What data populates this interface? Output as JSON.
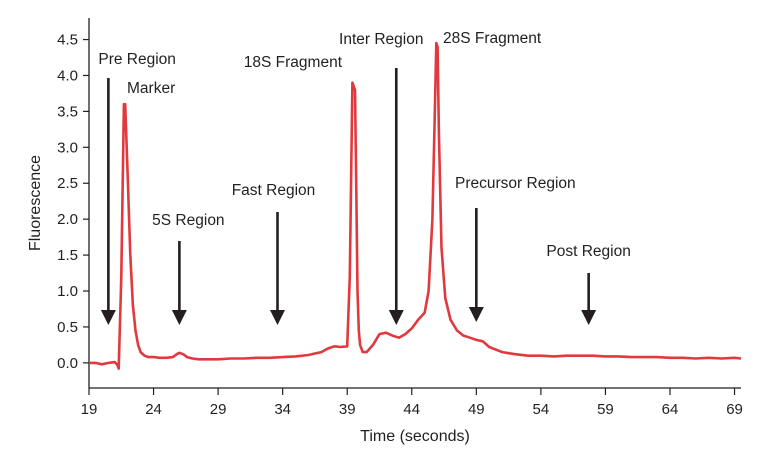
{
  "chart_data": {
    "type": "line",
    "title": "",
    "xlabel": "Time (seconds)",
    "ylabel": "Fluorescence",
    "xlim": [
      19,
      69.5
    ],
    "ylim": [
      -0.35,
      4.8
    ],
    "x_ticks": [
      19,
      24,
      29,
      34,
      39,
      44,
      49,
      54,
      59,
      64,
      69
    ],
    "y_ticks": [
      0.0,
      0.5,
      1.0,
      1.5,
      2.0,
      2.5,
      3.0,
      3.5,
      4.0,
      4.5
    ],
    "y_tick_labels": [
      "0.0",
      "0.5",
      "1.0",
      "1.5",
      "2.0",
      "2.5",
      "3.0",
      "3.5",
      "4.0",
      "4.5"
    ],
    "grid": false,
    "line_color": "#e03a3e",
    "series": [
      {
        "x": [
          19.0,
          19.5,
          20.0,
          20.5,
          21.0,
          21.2,
          21.3,
          21.5,
          21.7,
          21.8,
          22.0,
          22.2,
          22.4,
          22.6,
          22.8,
          23.0,
          23.3,
          23.6,
          24.0,
          24.5,
          25.0,
          25.5,
          25.8,
          26.0,
          26.3,
          26.6,
          27.0,
          27.5,
          28.0,
          29.0,
          30.0,
          31.0,
          32.0,
          33.0,
          34.0,
          35.0,
          36.0,
          36.5,
          37.0,
          37.5,
          38.0,
          38.5,
          39.0,
          39.2,
          39.4,
          39.6,
          39.7,
          39.8,
          39.9,
          40.0,
          40.2,
          40.5,
          41.0,
          41.5,
          42.0,
          42.5,
          43.0,
          43.5,
          44.0,
          44.5,
          45.0,
          45.3,
          45.6,
          45.8,
          45.9,
          46.0,
          46.1,
          46.3,
          46.6,
          47.0,
          47.5,
          48.0,
          48.5,
          49.0,
          49.5,
          50.0,
          51.0,
          52.0,
          53.0,
          54.0,
          55.0,
          56.0,
          57.0,
          58.0,
          59.0,
          60.0,
          61.0,
          62.0,
          63.0,
          64.0,
          65.0,
          66.0,
          67.0,
          68.0,
          69.0,
          69.5
        ],
        "y": [
          0.0,
          0.0,
          -0.02,
          0.0,
          0.01,
          -0.03,
          -0.08,
          1.2,
          3.6,
          3.6,
          2.6,
          1.5,
          0.8,
          0.45,
          0.25,
          0.15,
          0.1,
          0.08,
          0.08,
          0.07,
          0.07,
          0.08,
          0.12,
          0.14,
          0.12,
          0.08,
          0.06,
          0.05,
          0.05,
          0.05,
          0.06,
          0.06,
          0.07,
          0.07,
          0.08,
          0.09,
          0.11,
          0.13,
          0.15,
          0.2,
          0.23,
          0.22,
          0.23,
          1.2,
          3.9,
          3.8,
          2.4,
          1.0,
          0.45,
          0.25,
          0.15,
          0.15,
          0.25,
          0.4,
          0.42,
          0.38,
          0.35,
          0.4,
          0.48,
          0.6,
          0.7,
          1.0,
          2.0,
          3.6,
          4.45,
          4.4,
          3.2,
          1.6,
          0.9,
          0.6,
          0.45,
          0.38,
          0.35,
          0.32,
          0.3,
          0.22,
          0.15,
          0.12,
          0.1,
          0.1,
          0.09,
          0.1,
          0.1,
          0.1,
          0.09,
          0.09,
          0.08,
          0.08,
          0.08,
          0.07,
          0.07,
          0.06,
          0.07,
          0.06,
          0.07,
          0.06
        ]
      }
    ],
    "annotations": [
      {
        "label": "Pre Region",
        "x": 20.5
      },
      {
        "label": "5S Region",
        "x": 26.0
      },
      {
        "label": "Fast Region",
        "x": 33.6
      },
      {
        "label": "Inter Region",
        "x": 42.8
      },
      {
        "label": "Precursor Region",
        "x": 49.0
      },
      {
        "label": "Post Region",
        "x": 57.7
      }
    ],
    "peak_labels": [
      {
        "label": "Marker",
        "x": 21.8,
        "y": 3.6
      },
      {
        "label": "18S Fragment",
        "x": 39.6,
        "y": 3.9
      },
      {
        "label": "28S Fragment",
        "x": 46.0,
        "y": 4.45
      }
    ]
  }
}
